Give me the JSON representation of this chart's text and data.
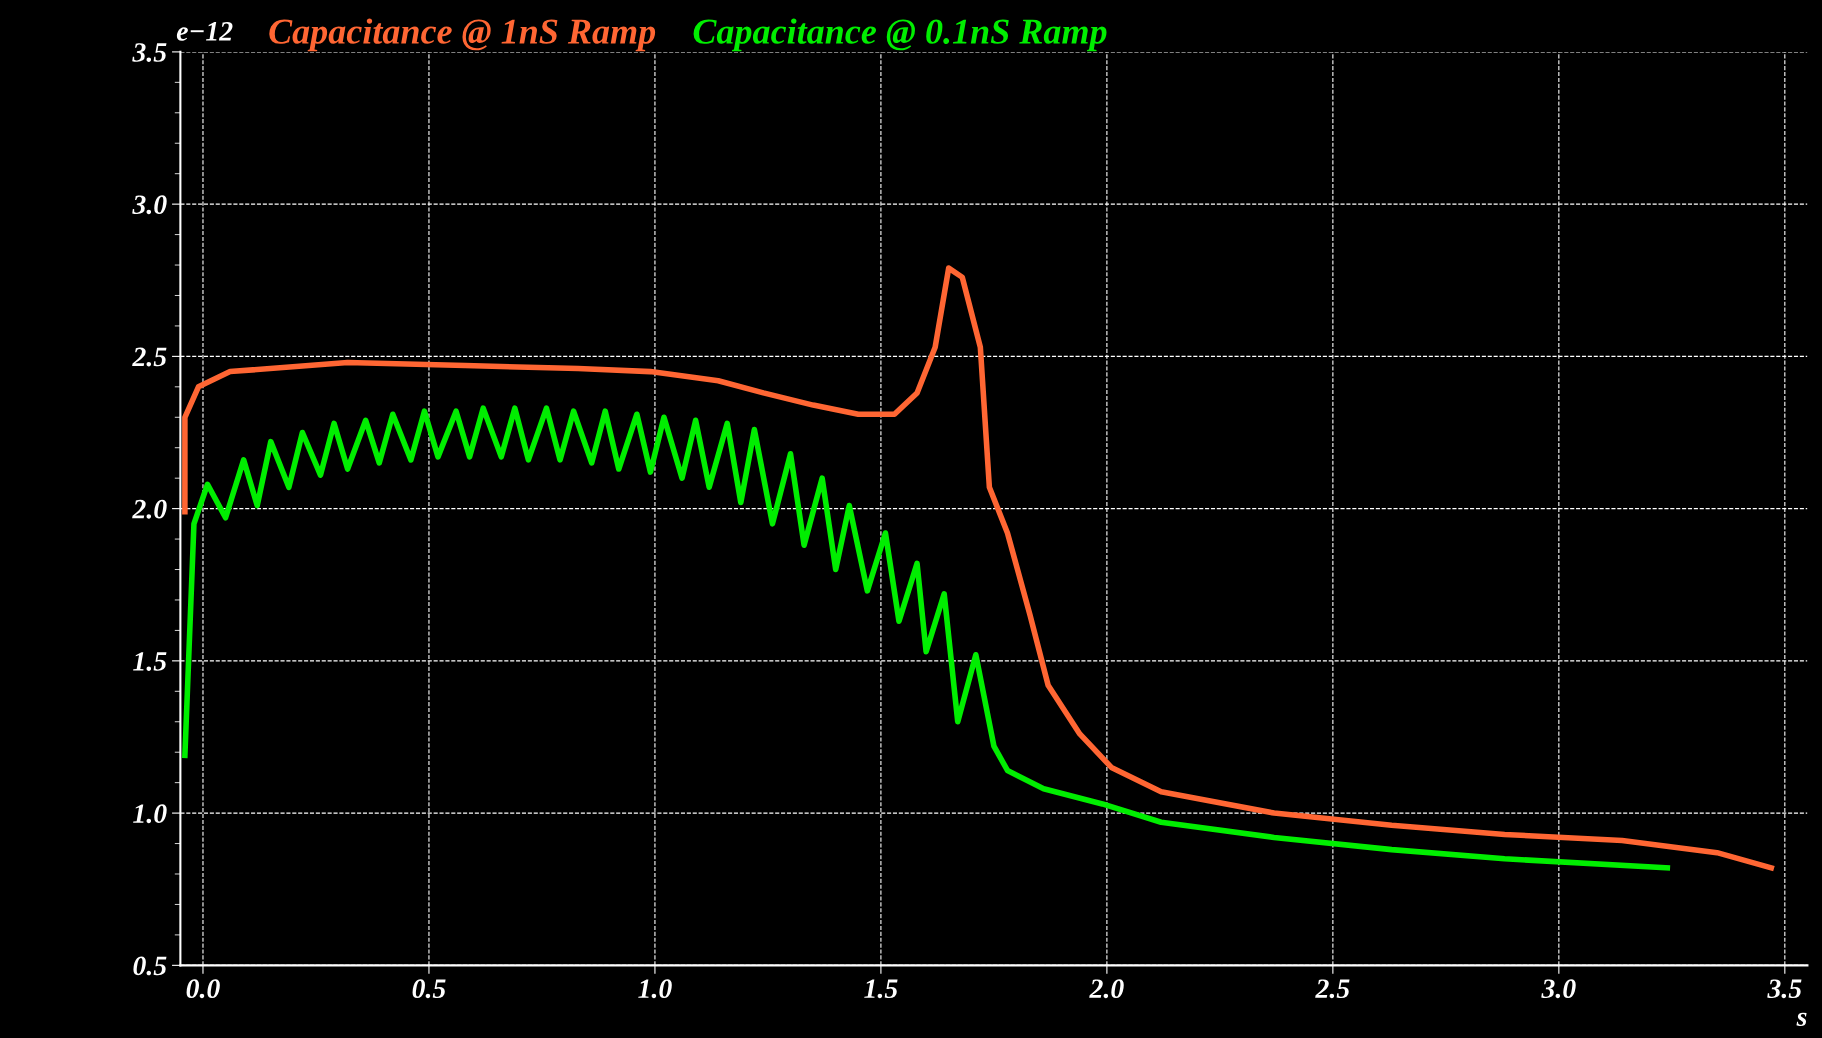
{
  "chart_data": {
    "type": "line",
    "xlabel": "s",
    "legend": "top left",
    "grid": true,
    "line_style": "solid",
    "xlim": [
      -0.05,
      3.55
    ],
    "ylim": [
      0.5,
      3.5
    ],
    "xticks": [
      {
        "value": 0,
        "label": "0.0"
      },
      0.5,
      {
        "value": 1,
        "label": "1.0"
      },
      1.5,
      {
        "value": 2,
        "label": "2.0"
      },
      2.5,
      {
        "value": 3,
        "label": "3.0"
      },
      3.5
    ],
    "yticks": [
      0.5,
      {
        "value": 1,
        "label": "1.0"
      },
      1.5,
      {
        "value": 2,
        "label": "2.0"
      },
      2.5,
      {
        "value": 3,
        "label": "3.0"
      },
      3.5
    ],
    "annotations": [
      "e−12"
    ],
    "series": [
      {
        "name": "Capacitance @ 1nS Ramp",
        "color": "#ff6633",
        "x": [
          -0.04,
          -0.04,
          -0.01,
          0.06,
          0.32,
          0.58,
          0.83,
          0.99,
          1.14,
          1.24,
          1.35,
          1.45,
          1.53,
          1.58,
          1.62,
          1.65,
          1.68,
          1.72,
          1.74,
          1.78,
          1.83,
          1.87,
          1.94,
          2.01,
          2.12,
          2.37,
          2.63,
          2.88,
          3.14,
          3.35,
          3.47
        ],
        "values": [
          1.99,
          2.3,
          2.4,
          2.45,
          2.48,
          2.47,
          2.46,
          2.45,
          2.42,
          2.38,
          2.34,
          2.31,
          2.31,
          2.38,
          2.53,
          2.79,
          2.76,
          2.53,
          2.07,
          1.92,
          1.65,
          1.42,
          1.26,
          1.15,
          1.07,
          1.0,
          0.96,
          0.93,
          0.91,
          0.87,
          0.82
        ]
      },
      {
        "name": "Capacitance @ 0.1nS Ramp",
        "color": "#00ee00",
        "x": [
          -0.04,
          -0.02,
          0.01,
          0.05,
          0.09,
          0.12,
          0.15,
          0.19,
          0.22,
          0.26,
          0.29,
          0.32,
          0.36,
          0.39,
          0.42,
          0.46,
          0.49,
          0.52,
          0.56,
          0.59,
          0.62,
          0.66,
          0.69,
          0.72,
          0.76,
          0.79,
          0.82,
          0.86,
          0.89,
          0.92,
          0.96,
          0.99,
          1.02,
          1.06,
          1.09,
          1.12,
          1.16,
          1.19,
          1.22,
          1.26,
          1.3,
          1.33,
          1.37,
          1.4,
          1.43,
          1.47,
          1.51,
          1.54,
          1.58,
          1.6,
          1.64,
          1.67,
          1.71,
          1.75,
          1.78,
          1.86,
          1.99,
          2.12,
          2.37,
          2.63,
          2.88,
          3.24
        ],
        "values": [
          1.19,
          1.95,
          2.08,
          1.97,
          2.16,
          2.01,
          2.22,
          2.07,
          2.25,
          2.11,
          2.28,
          2.13,
          2.29,
          2.15,
          2.31,
          2.16,
          2.32,
          2.17,
          2.32,
          2.17,
          2.33,
          2.17,
          2.33,
          2.16,
          2.33,
          2.16,
          2.32,
          2.15,
          2.32,
          2.13,
          2.31,
          2.12,
          2.3,
          2.1,
          2.29,
          2.07,
          2.28,
          2.02,
          2.26,
          1.95,
          2.18,
          1.88,
          2.1,
          1.8,
          2.01,
          1.73,
          1.92,
          1.63,
          1.82,
          1.53,
          1.72,
          1.3,
          1.52,
          1.22,
          1.14,
          1.08,
          1.03,
          0.97,
          0.92,
          0.88,
          0.85,
          0.82
        ]
      }
    ]
  }
}
